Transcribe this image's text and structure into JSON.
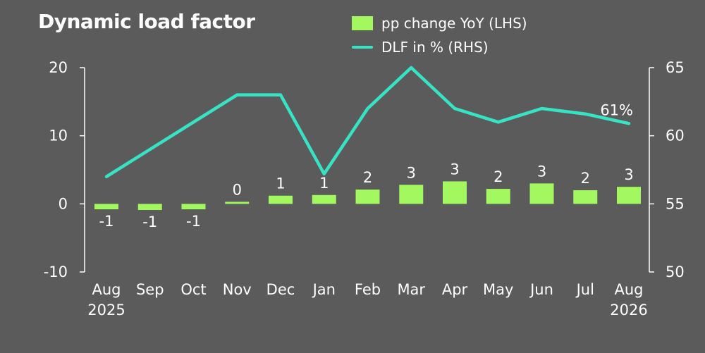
{
  "chart_data": {
    "type": "bar+line",
    "title": "Dynamic load factor",
    "categories": [
      [
        "Aug",
        "2025"
      ],
      [
        "Sep"
      ],
      [
        "Oct"
      ],
      [
        "Nov"
      ],
      [
        "Dec"
      ],
      [
        "Jan"
      ],
      [
        "Feb"
      ],
      [
        "Mar"
      ],
      [
        "Apr"
      ],
      [
        "May"
      ],
      [
        "Jun"
      ],
      [
        "Jul"
      ],
      [
        "Aug",
        "2026"
      ]
    ],
    "series": [
      {
        "name": "pp change YoY (LHS)",
        "kind": "bar",
        "axis": "left",
        "color": "#a3f75f",
        "values": [
          -0.8,
          -0.9,
          -0.8,
          0.3,
          1.2,
          1.3,
          2.1,
          2.8,
          3.3,
          2.2,
          3.0,
          2.0,
          2.5
        ],
        "labels": [
          "-1",
          "-1",
          "-1",
          "0",
          "1",
          "1",
          "2",
          "3",
          "3",
          "2",
          "3",
          "2",
          "3"
        ]
      },
      {
        "name": "DLF in % (RHS)",
        "kind": "line",
        "axis": "right",
        "color": "#37e3c5",
        "values": [
          57.0,
          59.0,
          61.0,
          63.0,
          63.0,
          57.2,
          62.0,
          65.0,
          62.0,
          61.0,
          62.0,
          61.6,
          60.9
        ],
        "end_label": "61%"
      }
    ],
    "y_left": {
      "range": [
        -10,
        20
      ],
      "ticks": [
        "-10",
        "0",
        "10",
        "20"
      ]
    },
    "y_right": {
      "range": [
        50,
        65
      ],
      "ticks": [
        "50",
        "55",
        "60",
        "65"
      ]
    },
    "legend_position": "top-right",
    "grid": false
  }
}
